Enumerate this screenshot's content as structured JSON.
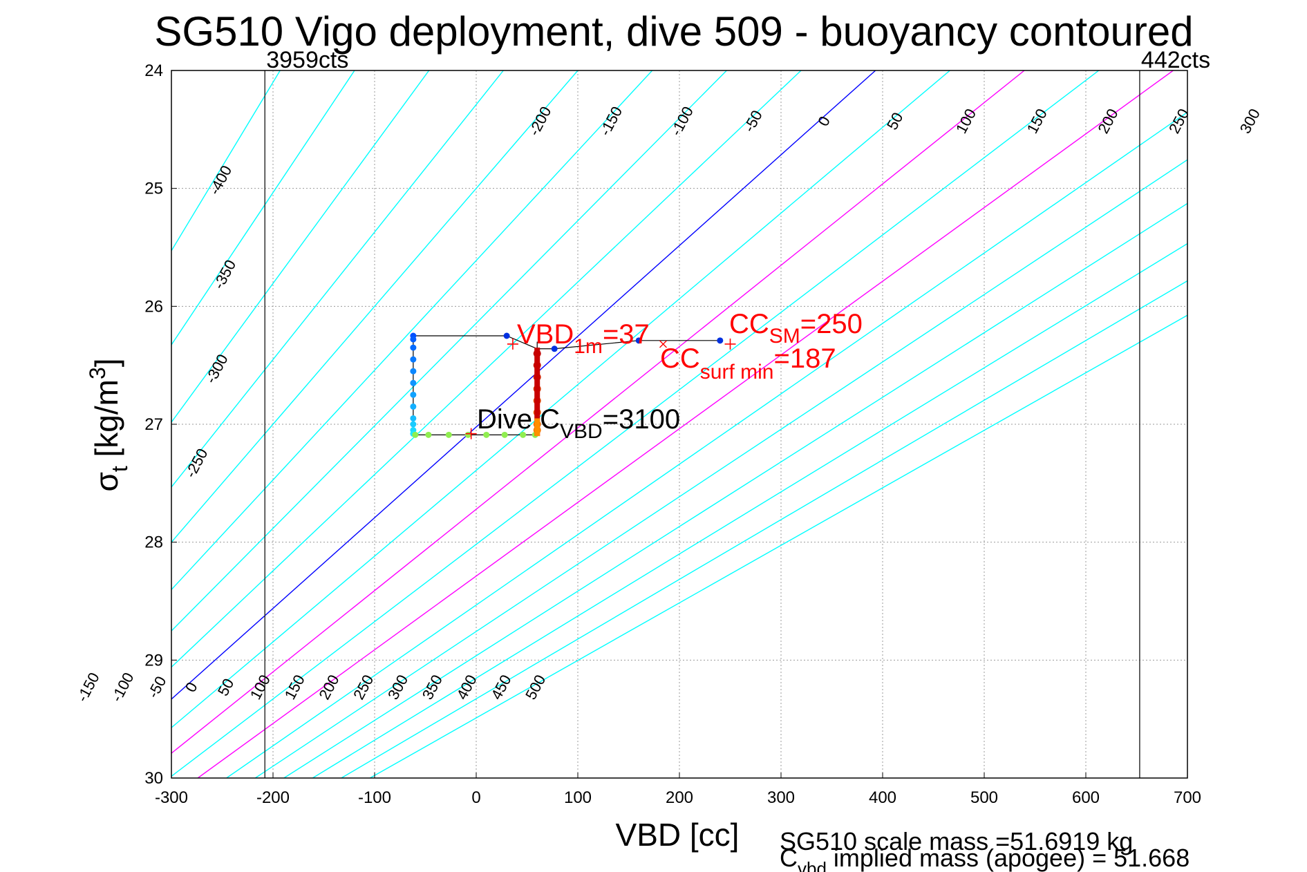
{
  "chart_data": {
    "type": "scatter",
    "title": "SG510 Vigo deployment, dive 509 - buoyancy contoured",
    "xlabel": "VBD [cc]",
    "ylabel_main": "σ",
    "ylabel_sub": "t",
    "ylabel_unit_a": " [kg/m",
    "ylabel_unit_sup": "3",
    "ylabel_unit_b": "]",
    "xlim": [
      -300,
      700
    ],
    "ylim": [
      30,
      24
    ],
    "xticks": [
      "-300",
      "-200",
      "-100",
      "0",
      "100",
      "200",
      "300",
      "400",
      "500",
      "600",
      "700"
    ],
    "yticks": [
      "24",
      "25",
      "26",
      "27",
      "28",
      "29",
      "30"
    ],
    "grid": true,
    "limit_lines": [
      {
        "x": -208,
        "label": "3959cts"
      },
      {
        "x": 653,
        "label": "442cts"
      }
    ],
    "buoyancy_contours": {
      "values": [
        -400,
        -350,
        -300,
        -250,
        -200,
        -150,
        -100,
        -50,
        0,
        50,
        100,
        150,
        200,
        250,
        300,
        350,
        400,
        450,
        500
      ],
      "zero_value": 0,
      "highlight_values": [
        100,
        200
      ],
      "top_labels": [
        "-400",
        "-350",
        "-300",
        "-250",
        "-200",
        "-150",
        "-100",
        "-50",
        "0",
        "50",
        "100",
        "150",
        "200",
        "250",
        "300",
        "350",
        "400",
        "450",
        "500"
      ],
      "bottom_labels": [
        "-150",
        "-100",
        "-50",
        "0",
        "50",
        "100",
        "150",
        "200",
        "250",
        "300",
        "350",
        "400",
        "450",
        "500"
      ],
      "colors": {
        "zero": "#0000ff",
        "highlight": "#ff00ff",
        "other": "#00ffff"
      }
    },
    "dive_track": {
      "x": [
        -62,
        -62,
        30,
        45,
        60,
        60,
        75,
        160,
        240,
        240
      ],
      "y": [
        26.25,
        27.1,
        26.25,
        26.32,
        26.33,
        27.1,
        26.37,
        26.3,
        26.3,
        26.3
      ]
    },
    "dive_points": {
      "blue_left": {
        "x": -62,
        "sigma": [
          26.25,
          26.28,
          26.35,
          26.45,
          26.55,
          26.65,
          26.75,
          26.85,
          26.95,
          27.0,
          27.05,
          27.08
        ],
        "color": "#2060ff"
      },
      "bottom_green": {
        "sigma": 27.09,
        "x": [
          -60,
          -47,
          -27,
          -8,
          10,
          28,
          46,
          58
        ],
        "color": "#90ee50"
      },
      "vertical_red": {
        "x": 60,
        "sigma": [
          26.4,
          26.5,
          26.6,
          26.7,
          26.8,
          26.9,
          27.0,
          27.05
        ],
        "color": "#dd0000"
      },
      "top_blue": {
        "x": [
          30,
          77,
          160,
          240
        ],
        "sigma": [
          26.25,
          26.36,
          26.29,
          26.29
        ],
        "color": "#0030e0"
      }
    },
    "markers": [
      {
        "symbol": "+",
        "x": 36,
        "sigma": 26.32,
        "color": "#ff0000"
      },
      {
        "symbol": "+",
        "x": 250,
        "sigma": 26.32,
        "color": "#ff0000"
      },
      {
        "symbol": "x",
        "x": 184,
        "sigma": 26.32,
        "color": "#ff0000"
      },
      {
        "symbol": "+",
        "x": -5,
        "sigma": 27.08,
        "color": "#ff0000"
      }
    ],
    "annotations": {
      "vbd_1m": {
        "text_a": "VBD",
        "sub": "1m",
        "text_b": "=37"
      },
      "cc_sm": {
        "text_a": "CC",
        "sub": "SM",
        "text_b": "=250"
      },
      "cc_surf_min": {
        "text_a": "CC",
        "sub": "surf min",
        "text_b": "=187"
      },
      "dive_c_vbd": {
        "text_a": "Dive C",
        "sub": "VBD",
        "text_b": "=3100"
      }
    },
    "footer": {
      "scale_mass": "SG510 scale mass =51.6919 kg",
      "implied_a": "C",
      "implied_sub": "vbd",
      "implied_b": " implied mass (apogee) = 51.668"
    }
  }
}
